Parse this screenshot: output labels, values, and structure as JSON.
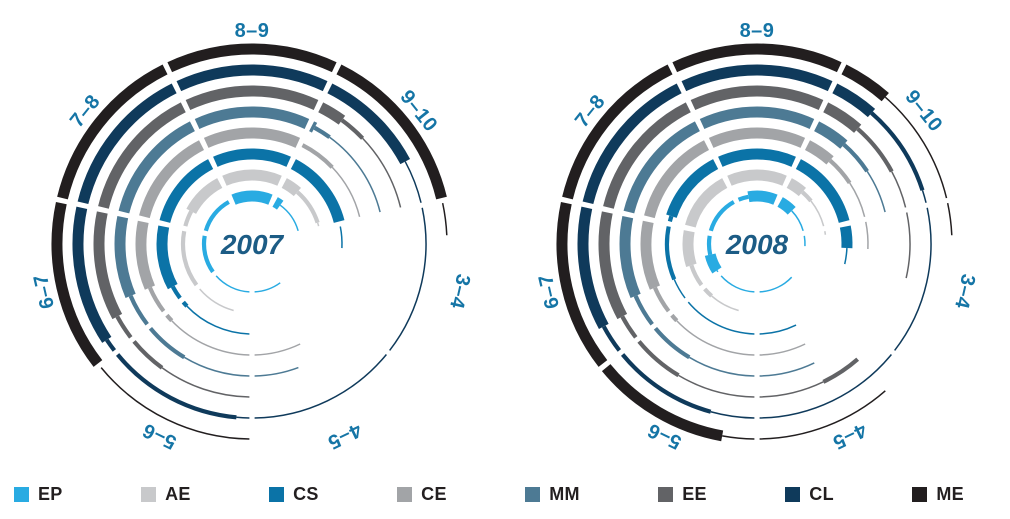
{
  "page": {
    "background": "#FFFFFF"
  },
  "legend": {
    "items": [
      {
        "label": "EP",
        "color": "#29ABE2"
      },
      {
        "label": "AE",
        "color": "#C8C9CB"
      },
      {
        "label": "CS",
        "color": "#0B73A7"
      },
      {
        "label": "CE",
        "color": "#A2A4A7"
      },
      {
        "label": "MM",
        "color": "#4D7A94"
      },
      {
        "label": "EE",
        "color": "#626366"
      },
      {
        "label": "CL",
        "color": "#0F3A5B"
      },
      {
        "label": "ME",
        "color": "#221E1F"
      }
    ]
  },
  "chart_data": {
    "type": "radial-ring-arcs",
    "score_axis": {
      "min": 3,
      "max": 10,
      "sector_labels": [
        "3–4",
        "4–5",
        "5–6",
        "6–7",
        "7–8",
        "8–9",
        "9–10"
      ],
      "clockwise": true,
      "top_sector": "8–9"
    },
    "rings_inner_to_outer": [
      "EP",
      "AE",
      "CS",
      "CE",
      "MM",
      "EE",
      "CL",
      "ME"
    ],
    "ring_colors": {
      "EP": "#29ABE2",
      "AE": "#C8C9CB",
      "CS": "#0B73A7",
      "CE": "#A2A4A7",
      "MM": "#4D7A94",
      "EE": "#626366",
      "CL": "#0F3A5B",
      "ME": "#221E1F"
    },
    "stroke_weights_px": {
      "thick": 11,
      "med": 4.2,
      "thin": 1.5
    },
    "charts": [
      {
        "year": "2007",
        "rings": {
          "EP": [
            [
              4.3,
              6.0,
              "thin"
            ],
            [
              6.0,
              8.0,
              "med"
            ],
            [
              8.0,
              9.2,
              "thick"
            ],
            [
              9.2,
              10.0,
              "thin"
            ]
          ],
          "AE": [
            [
              5.3,
              6.0,
              "thin"
            ],
            [
              6.0,
              7.3,
              "med"
            ],
            [
              7.3,
              9.3,
              "thick"
            ],
            [
              9.3,
              9.9,
              "med"
            ],
            [
              9.9,
              10.0,
              "thin"
            ]
          ],
          "CS": [
            [
              5.0,
              5.9,
              "thin"
            ],
            [
              5.9,
              6.2,
              "med"
            ],
            [
              6.2,
              10.0,
              "thick"
            ],
            [
              3.0,
              3.3,
              "thin"
            ]
          ],
          "CE": [
            [
              4.5,
              5.9,
              "thin"
            ],
            [
              5.9,
              6.3,
              "med"
            ],
            [
              6.3,
              9.0,
              "thick"
            ],
            [
              9.0,
              9.4,
              "med"
            ],
            [
              9.4,
              10.0,
              "thin"
            ]
          ],
          "MM": [
            [
              4.6,
              5.6,
              "thin"
            ],
            [
              5.6,
              6.3,
              "med"
            ],
            [
              6.3,
              9.05,
              "thick"
            ],
            [
              9.05,
              9.2,
              "med"
            ],
            [
              9.2,
              10.0,
              "thin"
            ]
          ],
          "EE": [
            [
              5.0,
              5.7,
              "thin"
            ],
            [
              5.7,
              6.2,
              "med"
            ],
            [
              6.2,
              9.2,
              "thick"
            ],
            [
              9.2,
              9.4,
              "med"
            ],
            [
              9.4,
              10.0,
              "thin"
            ]
          ],
          "CL": [
            [
              3.0,
              5.1,
              "thin"
            ],
            [
              5.1,
              6.1,
              "med"
            ],
            [
              6.1,
              9.7,
              "thick"
            ],
            [
              9.7,
              10.0,
              "thin"
            ]
          ],
          "ME": [
            [
              5.0,
              6.0,
              "thin"
            ],
            [
              6.0,
              10.0,
              "thick"
            ],
            [
              3.0,
              3.2,
              "thin"
            ]
          ]
        }
      },
      {
        "year": "2008",
        "rings": {
          "EP": [
            [
              4.1,
              6.1,
              "thin"
            ],
            [
              6.1,
              6.5,
              "thick"
            ],
            [
              6.5,
              8.3,
              "med"
            ],
            [
              8.3,
              9.4,
              "thick"
            ],
            [
              9.4,
              10.0,
              "thin"
            ],
            [
              3.0,
              3.3,
              "thin"
            ]
          ],
          "AE": [
            [
              5.3,
              5.8,
              "thin"
            ],
            [
              5.8,
              6.4,
              "med"
            ],
            [
              6.4,
              9.3,
              "thick"
            ],
            [
              9.3,
              9.5,
              "med"
            ],
            [
              9.5,
              10.0,
              "thin"
            ],
            [
              3.0,
              3.1,
              "thin"
            ]
          ],
          "CS": [
            [
              4.5,
              6.3,
              "thin"
            ],
            [
              6.3,
              7.1,
              "med"
            ],
            [
              7.1,
              10.0,
              "thick"
            ],
            [
              3.0,
              3.3,
              "thick"
            ],
            [
              3.3,
              3.5,
              "thin"
            ]
          ],
          "CE": [
            [
              4.5,
              5.9,
              "thin"
            ],
            [
              5.9,
              6.3,
              "med"
            ],
            [
              6.3,
              9.3,
              "thick"
            ],
            [
              9.3,
              9.6,
              "med"
            ],
            [
              9.6,
              10.0,
              "thin"
            ],
            [
              3.0,
              3.3,
              "thin"
            ]
          ],
          "MM": [
            [
              4.5,
              5.6,
              "thin"
            ],
            [
              5.6,
              6.3,
              "med"
            ],
            [
              6.3,
              9.3,
              "thick"
            ],
            [
              9.3,
              9.6,
              "med"
            ],
            [
              9.6,
              10.0,
              "thin"
            ]
          ],
          "EE": [
            [
              4.2,
              4.5,
              "med"
            ],
            [
              4.5,
              5.6,
              "thin"
            ],
            [
              5.6,
              6.2,
              "med"
            ],
            [
              6.2,
              9.3,
              "thick"
            ],
            [
              9.3,
              9.7,
              "med"
            ],
            [
              9.7,
              10.0,
              "thin"
            ],
            [
              3.0,
              3.5,
              "thin"
            ]
          ],
          "CL": [
            [
              3.0,
              5.3,
              "thin"
            ],
            [
              5.3,
              6.2,
              "med"
            ],
            [
              6.2,
              9.3,
              "thick"
            ],
            [
              9.3,
              9.9,
              "med"
            ],
            [
              9.9,
              10.0,
              "thin"
            ]
          ],
          "ME": [
            [
              4.2,
              5.2,
              "thin"
            ],
            [
              5.2,
              9.3,
              "thick"
            ],
            [
              9.3,
              10.0,
              "thin"
            ],
            [
              3.0,
              3.2,
              "thin"
            ]
          ]
        }
      }
    ]
  }
}
